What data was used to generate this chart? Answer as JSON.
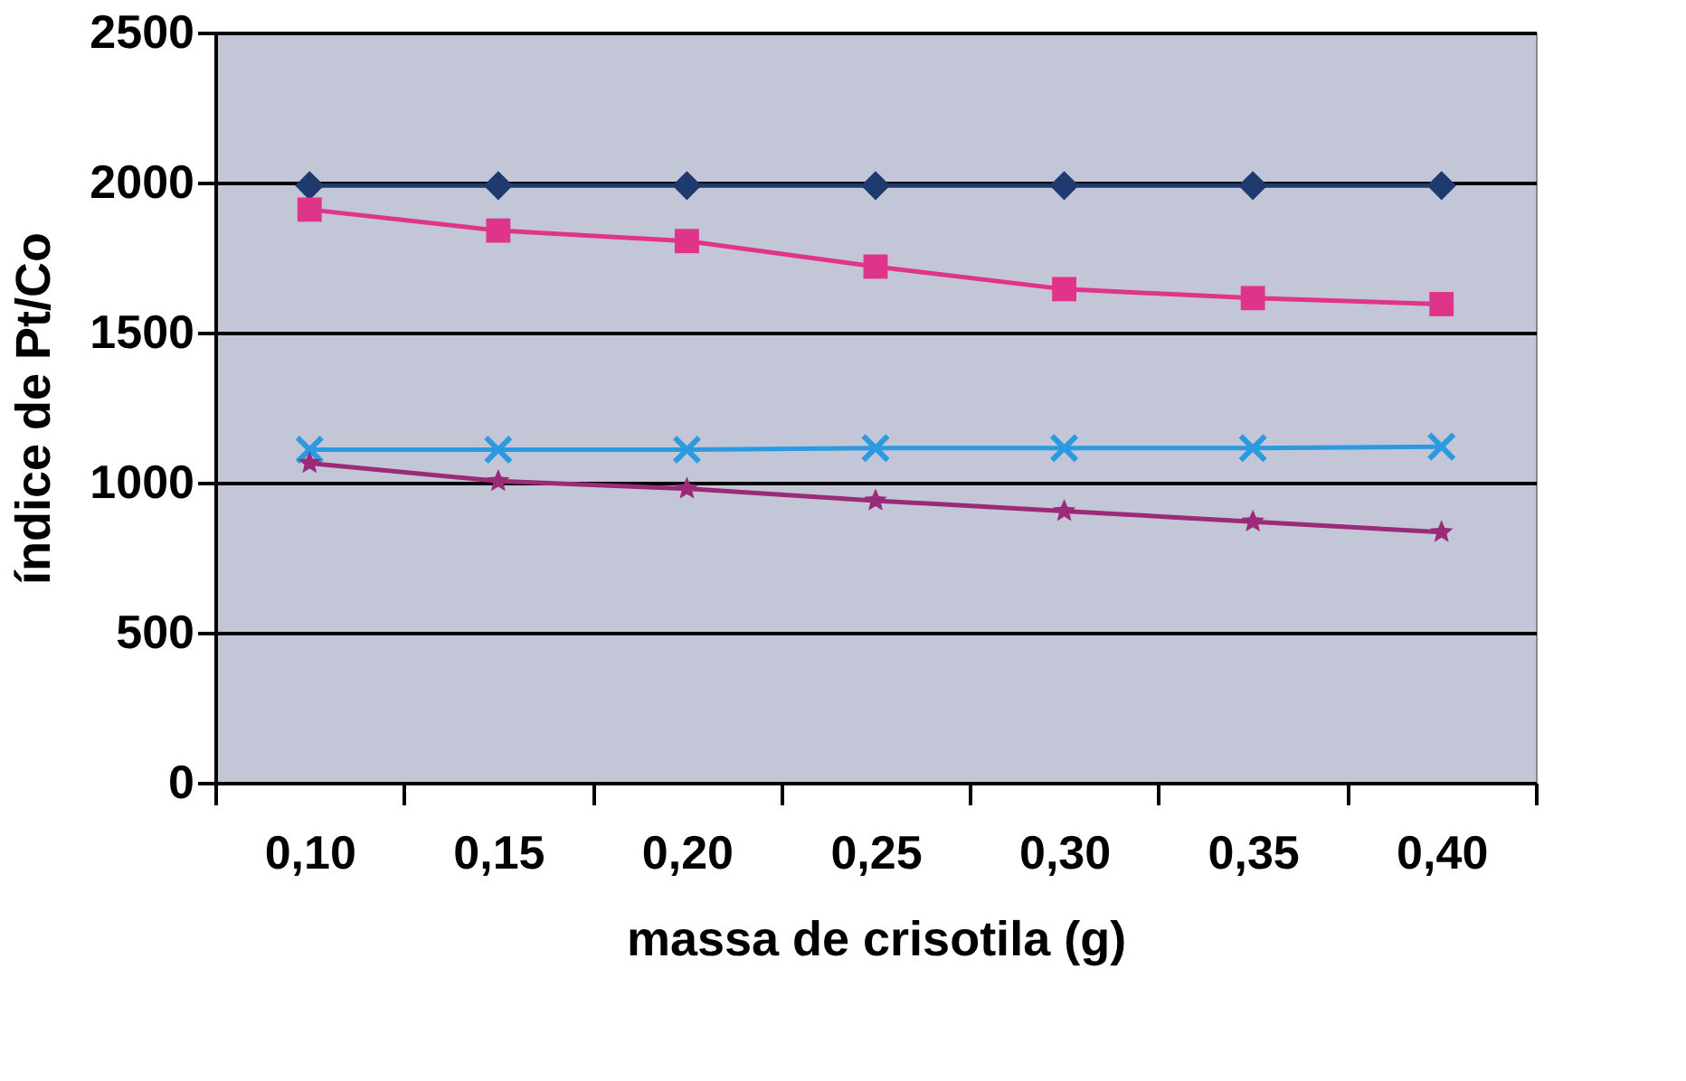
{
  "chart_data": {
    "type": "line",
    "xlabel": "massa de crisotila (g)",
    "ylabel": "índice de Pt/Co",
    "categories": [
      "0,10",
      "0,15",
      "0,20",
      "0,25",
      "0,30",
      "0,35",
      "0,40"
    ],
    "ylim": [
      0,
      2500
    ],
    "yticks": [
      0,
      500,
      1000,
      1500,
      2000,
      2500
    ],
    "grid": "y",
    "series": [
      {
        "color": "#1f3a6e",
        "marker": "diamond",
        "values": [
          1990,
          1990,
          1990,
          1990,
          1990,
          1990,
          1990
        ]
      },
      {
        "color": "#e0338a",
        "marker": "square",
        "values": [
          1910,
          1840,
          1805,
          1720,
          1645,
          1615,
          1595
        ]
      },
      {
        "color": "#2b9ae0",
        "marker": "cross",
        "values": [
          1110,
          1110,
          1110,
          1115,
          1115,
          1115,
          1120
        ]
      },
      {
        "color": "#9b2a78",
        "marker": "star",
        "values": [
          1065,
          1005,
          980,
          940,
          905,
          870,
          835
        ]
      }
    ]
  }
}
